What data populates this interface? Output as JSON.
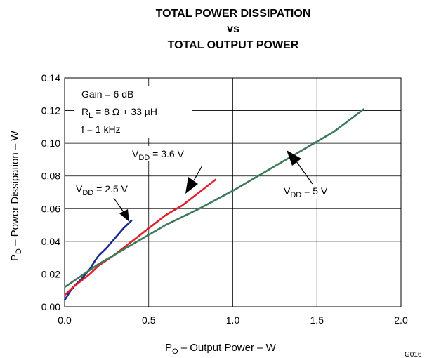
{
  "chart_data": {
    "type": "line",
    "title_lines": [
      "TOTAL POWER DISSIPATION",
      "vs",
      "TOTAL OUTPUT POWER"
    ],
    "xlabel": {
      "main": "P",
      "sub": "O",
      "rest": " – Output Power – W"
    },
    "ylabel": {
      "main": "P",
      "sub": "D",
      "rest": " – Power Dissipation – W"
    },
    "xlim": [
      0,
      2.0
    ],
    "ylim": [
      0,
      0.14
    ],
    "xticks": [
      "0.0",
      "0.5",
      "1.0",
      "1.5",
      "2.0"
    ],
    "yticks": [
      "0.00",
      "0.02",
      "0.04",
      "0.06",
      "0.08",
      "0.10",
      "0.12",
      "0.14"
    ],
    "grid": true,
    "conditions": {
      "gain": "Gain = 6 dB",
      "rl_main": "R",
      "rl_sub": "L",
      "rl_rest": " = 8 Ω + 33 µH",
      "freq": "f = 1 kHz"
    },
    "figure_code": "G016",
    "series": [
      {
        "label_main": "V",
        "label_sub": "DD",
        "label_rest": " = 2.5 V",
        "color": "#1a2a8c",
        "x": [
          0.0,
          0.03,
          0.06,
          0.1,
          0.15,
          0.18,
          0.2,
          0.25,
          0.3,
          0.35,
          0.4
        ],
        "y": [
          0.004,
          0.009,
          0.013,
          0.017,
          0.023,
          0.028,
          0.031,
          0.036,
          0.042,
          0.048,
          0.053
        ]
      },
      {
        "label_main": "V",
        "label_sub": "DD",
        "label_rest": " = 3.6 V",
        "color": "#e0202a",
        "x": [
          0.0,
          0.05,
          0.1,
          0.15,
          0.2,
          0.3,
          0.4,
          0.5,
          0.6,
          0.7,
          0.8,
          0.9
        ],
        "y": [
          0.007,
          0.012,
          0.016,
          0.02,
          0.025,
          0.032,
          0.04,
          0.048,
          0.056,
          0.062,
          0.07,
          0.078
        ]
      },
      {
        "label_main": "V",
        "label_sub": "DD",
        "label_rest": " = 5 V",
        "color": "#3d7a5a",
        "x": [
          0.0,
          0.1,
          0.2,
          0.3,
          0.4,
          0.6,
          0.8,
          1.0,
          1.2,
          1.4,
          1.6,
          1.78
        ],
        "y": [
          0.012,
          0.019,
          0.026,
          0.032,
          0.038,
          0.05,
          0.06,
          0.071,
          0.083,
          0.095,
          0.107,
          0.121
        ]
      }
    ]
  }
}
